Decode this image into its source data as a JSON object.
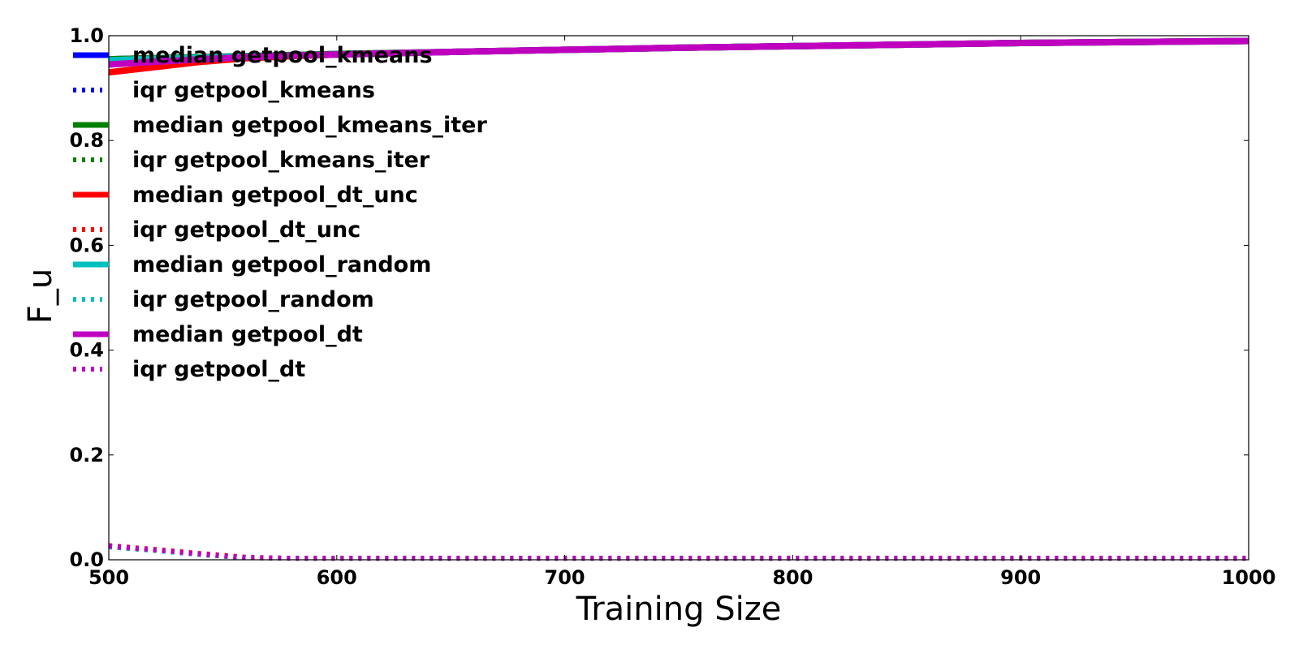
{
  "chart_data": {
    "type": "line",
    "xlabel": "Training Size",
    "ylabel": "F_u",
    "xlim": [
      500,
      1000
    ],
    "ylim": [
      0.0,
      1.0
    ],
    "x_ticks": [
      "500",
      "600",
      "700",
      "800",
      "900",
      "1000"
    ],
    "y_ticks": [
      "0.0",
      "0.2",
      "0.4",
      "0.6",
      "0.8",
      "1.0"
    ],
    "grid": false,
    "legend_position": "upper-left",
    "x": [
      500,
      520,
      540,
      560,
      580,
      600,
      650,
      700,
      750,
      800,
      850,
      900,
      950,
      1000
    ],
    "series": [
      {
        "name": "median getpool_kmeans",
        "color": "#0000ff",
        "style": "solid",
        "values": [
          0.955,
          0.957,
          0.959,
          0.961,
          0.963,
          0.965,
          0.969,
          0.973,
          0.977,
          0.98,
          0.983,
          0.986,
          0.988,
          0.99
        ]
      },
      {
        "name": "iqr getpool_kmeans",
        "color": "#0000ff",
        "style": "dotted",
        "values": [
          0.025,
          0.018,
          0.01,
          0.004,
          0.003,
          0.003,
          0.003,
          0.003,
          0.003,
          0.003,
          0.003,
          0.003,
          0.003,
          0.003
        ]
      },
      {
        "name": "median getpool_kmeans_iter",
        "color": "#008000",
        "style": "solid",
        "values": [
          0.955,
          0.957,
          0.959,
          0.961,
          0.963,
          0.965,
          0.969,
          0.973,
          0.977,
          0.98,
          0.983,
          0.986,
          0.988,
          0.99
        ]
      },
      {
        "name": "iqr getpool_kmeans_iter",
        "color": "#008000",
        "style": "dotted",
        "values": [
          0.025,
          0.018,
          0.01,
          0.004,
          0.003,
          0.003,
          0.003,
          0.003,
          0.003,
          0.003,
          0.003,
          0.003,
          0.003,
          0.003
        ]
      },
      {
        "name": "median getpool_dt_unc",
        "color": "#ff0000",
        "style": "solid",
        "values": [
          0.93,
          0.94,
          0.95,
          0.957,
          0.961,
          0.964,
          0.969,
          0.973,
          0.977,
          0.98,
          0.983,
          0.986,
          0.988,
          0.99
        ]
      },
      {
        "name": "iqr getpool_dt_unc",
        "color": "#ff0000",
        "style": "dotted",
        "values": [
          0.027,
          0.02,
          0.012,
          0.005,
          0.003,
          0.003,
          0.003,
          0.003,
          0.003,
          0.003,
          0.003,
          0.003,
          0.003,
          0.003
        ]
      },
      {
        "name": "median getpool_random",
        "color": "#00bfbf",
        "style": "solid",
        "values": [
          0.953,
          0.956,
          0.958,
          0.96,
          0.962,
          0.964,
          0.969,
          0.973,
          0.977,
          0.98,
          0.983,
          0.986,
          0.988,
          0.99
        ]
      },
      {
        "name": "iqr getpool_random",
        "color": "#00bfbf",
        "style": "dotted",
        "values": [
          0.025,
          0.018,
          0.01,
          0.004,
          0.003,
          0.003,
          0.003,
          0.003,
          0.003,
          0.003,
          0.003,
          0.003,
          0.003,
          0.003
        ]
      },
      {
        "name": "median getpool_dt",
        "color": "#bf00bf",
        "style": "solid",
        "values": [
          0.945,
          0.95,
          0.955,
          0.959,
          0.962,
          0.964,
          0.969,
          0.973,
          0.977,
          0.98,
          0.983,
          0.986,
          0.988,
          0.99
        ]
      },
      {
        "name": "iqr getpool_dt",
        "color": "#bf00bf",
        "style": "dotted",
        "values": [
          0.026,
          0.019,
          0.011,
          0.004,
          0.003,
          0.003,
          0.003,
          0.003,
          0.003,
          0.003,
          0.003,
          0.003,
          0.003,
          0.003
        ]
      }
    ]
  }
}
